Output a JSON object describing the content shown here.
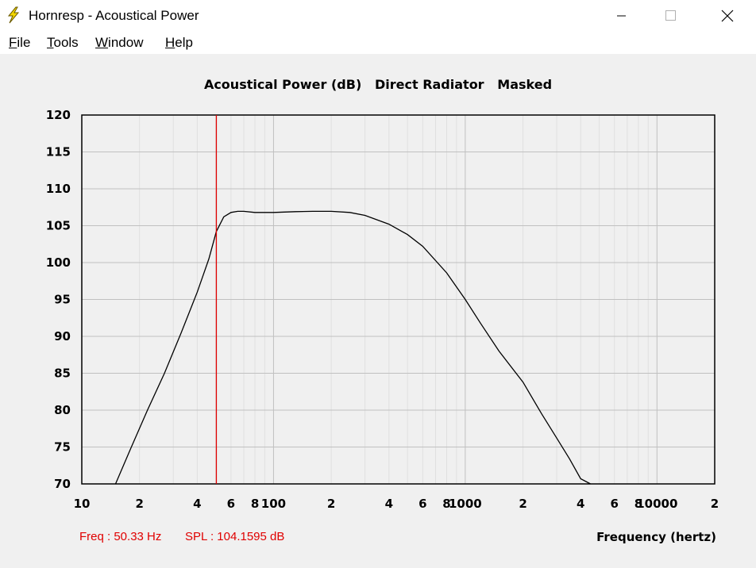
{
  "window": {
    "title": "Hornresp - Acoustical Power",
    "icon": "lightning-bolt-icon"
  },
  "menu": [
    {
      "label_first": "F",
      "label_rest": "ile"
    },
    {
      "label_first": "T",
      "label_rest": "ools"
    },
    {
      "label_first": "W",
      "label_rest": "indow"
    },
    {
      "label_first": "H",
      "label_rest": "elp"
    }
  ],
  "chart_title": "Acoustical Power (dB)   Direct Radiator   Masked",
  "chart_data": {
    "type": "line",
    "title": "Acoustical Power (dB)   Direct Radiator   Masked",
    "xlabel": "Frequency (hertz)",
    "ylabel": "",
    "x_scale": "log",
    "xlim": [
      10,
      20000
    ],
    "ylim": [
      70,
      120
    ],
    "grid": true,
    "y_ticks": [
      "120",
      "115",
      "110",
      "105",
      "100",
      "95",
      "90",
      "85",
      "80",
      "75",
      "70"
    ],
    "x_ticks": [
      {
        "v": 10,
        "label": "10"
      },
      {
        "v": 20,
        "label": "2"
      },
      {
        "v": 40,
        "label": "4"
      },
      {
        "v": 60,
        "label": "6"
      },
      {
        "v": 80,
        "label": "8"
      },
      {
        "v": 100,
        "label": "100"
      },
      {
        "v": 200,
        "label": "2"
      },
      {
        "v": 400,
        "label": "4"
      },
      {
        "v": 600,
        "label": "6"
      },
      {
        "v": 800,
        "label": "8"
      },
      {
        "v": 1000,
        "label": "1000"
      },
      {
        "v": 2000,
        "label": "2"
      },
      {
        "v": 4000,
        "label": "4"
      },
      {
        "v": 6000,
        "label": "6"
      },
      {
        "v": 8000,
        "label": "8"
      },
      {
        "v": 10000,
        "label": "10000"
      },
      {
        "v": 20000,
        "label": "2"
      }
    ],
    "series": [
      {
        "color": "#000000",
        "x": [
          15,
          18,
          22,
          27,
          33,
          40,
          46,
          50.3,
          55,
          60,
          65,
          70,
          80,
          100,
          130,
          160,
          200,
          250,
          300,
          400,
          500,
          600,
          800,
          1000,
          1200,
          1500,
          2000,
          2500,
          3000,
          3500,
          4000,
          4500
        ],
        "y": [
          70,
          74.8,
          80,
          85,
          90.5,
          96,
          100.5,
          104.2,
          106.2,
          106.8,
          106.95,
          106.95,
          106.8,
          106.8,
          106.9,
          106.95,
          106.95,
          106.8,
          106.4,
          105.2,
          103.8,
          102.2,
          98.6,
          95.0,
          91.8,
          88.0,
          83.8,
          79.5,
          76.2,
          73.4,
          70.7,
          69.5
        ]
      }
    ],
    "cursor": {
      "x": 50.33,
      "color": "#e00000"
    }
  },
  "readout": {
    "freq": "Freq : 50.33 Hz",
    "spl": "SPL : 104.1595 dB"
  },
  "x_axis_label": "Frequency (hertz)",
  "colors": {
    "grid_major": "#c0c0c0",
    "grid_minor": "#e0e0e0",
    "cursor": "#e00000",
    "curve": "#000000"
  }
}
